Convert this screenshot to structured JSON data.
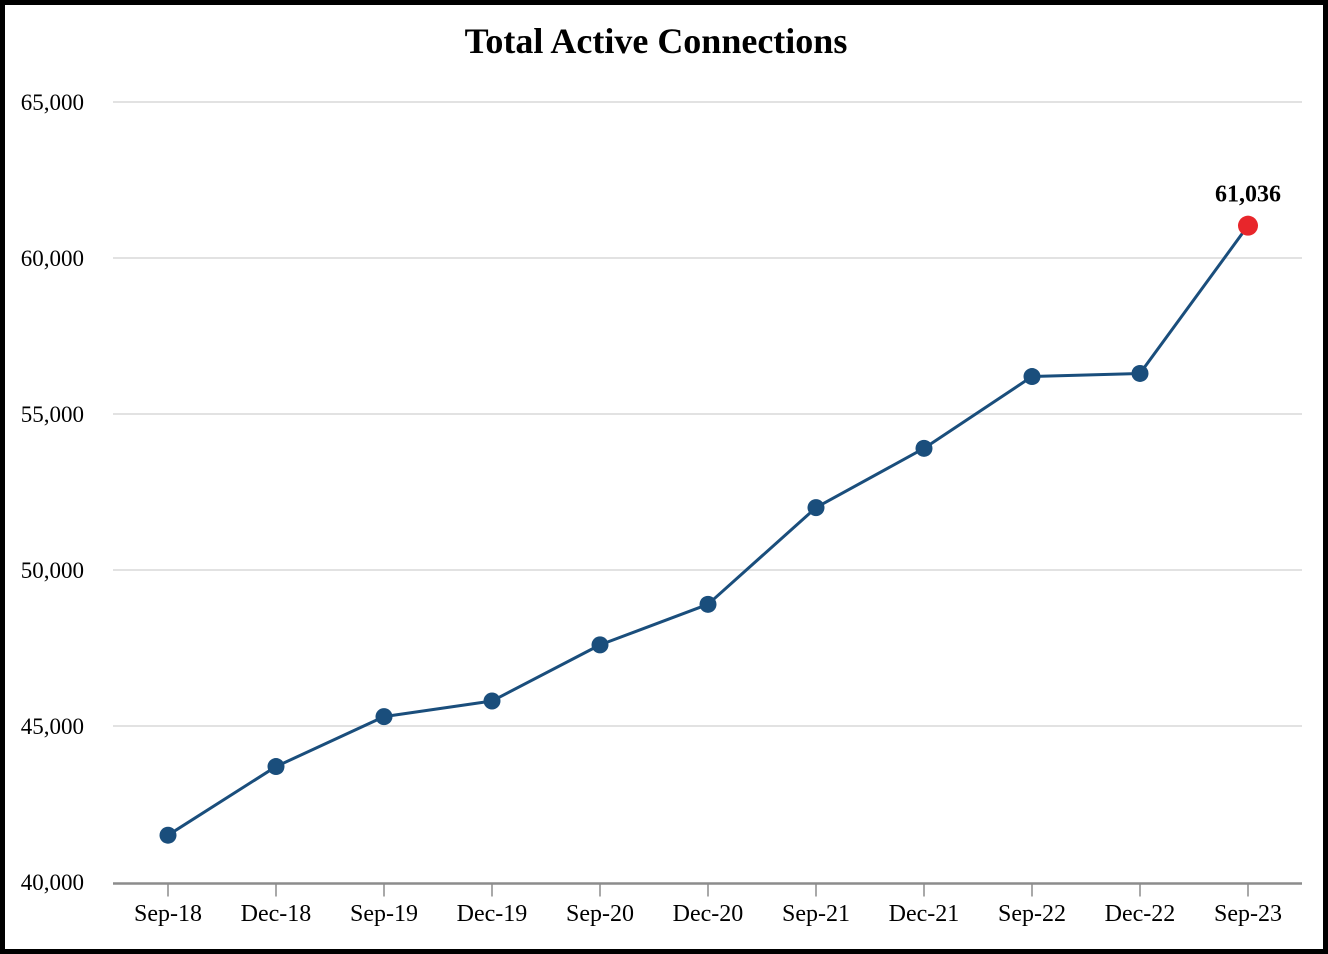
{
  "frame": {
    "background_color": "#ffffff",
    "border_color": "#000000"
  },
  "chart_data": {
    "type": "line",
    "title": "Total Active Connections",
    "categories": [
      "Sep-18",
      "Dec-18",
      "Sep-19",
      "Dec-19",
      "Sep-20",
      "Dec-20",
      "Sep-21",
      "Dec-21",
      "Sep-22",
      "Dec-22",
      "Sep-23"
    ],
    "series": [
      {
        "name": "Total Active Connections",
        "values": [
          41500,
          43700,
          45300,
          45800,
          47600,
          48900,
          52000,
          53900,
          56200,
          56300,
          61036
        ],
        "color": "#1a4e7c",
        "marker": "circle"
      }
    ],
    "highlight_point": {
      "category": "Sep-23",
      "value": 61036,
      "color": "#e8262b"
    },
    "annotation": {
      "text": "61,036",
      "category": "Sep-23"
    },
    "y_axis": {
      "min": 40000,
      "max": 65000,
      "tick_step": 5000,
      "tick_labels": [
        "40,000",
        "45,000",
        "50,000",
        "55,000",
        "60,000",
        "65,000"
      ]
    },
    "x_axis": {
      "tick_marks": true
    },
    "grid": {
      "horizontal": true,
      "vertical": false,
      "color": "#e2e2e2"
    },
    "axis_color": "#8c8c8c",
    "text_color": "#000000",
    "legend": "none"
  }
}
